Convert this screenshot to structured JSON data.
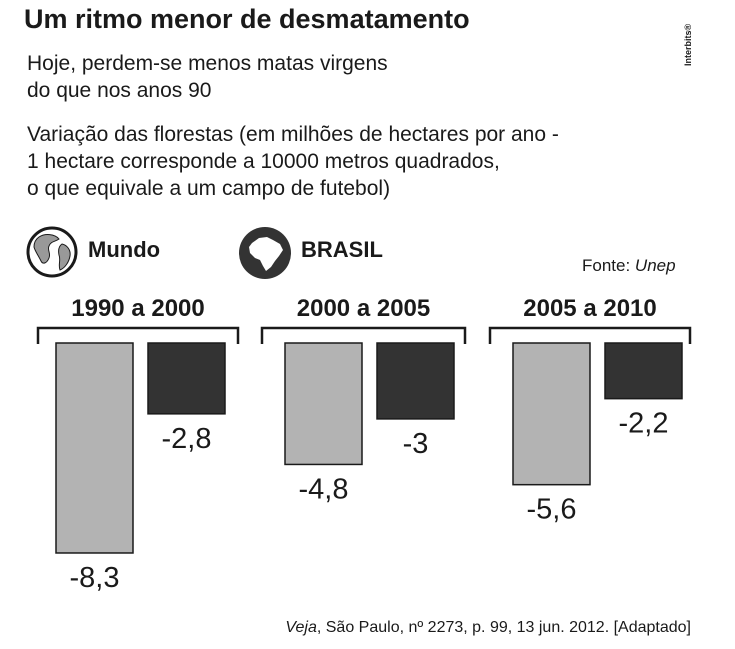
{
  "header": {
    "title": "Um ritmo menor de desmatamento",
    "subtitle_line1": "Hoje, perdem-se menos matas virgens",
    "subtitle_line2": "do que nos anos 90",
    "description_line1": "Variação das florestas (em milhões de hectares por ano -",
    "description_line2": "1 hectare corresponde a 10000 metros quadrados,",
    "description_line3": "o que equivale a um campo de futebol)",
    "credit": "Interbits®"
  },
  "legend": {
    "mundo": "Mundo",
    "brasil": "BRASIL",
    "mundo_icon": "globe-icon",
    "brasil_icon": "brazil-map-icon"
  },
  "source": {
    "prefix": "Fonte: ",
    "name": "Unep"
  },
  "footer": {
    "publication": "Veja",
    "rest": ", São Paulo, nº 2273, p. 99, 13 jun. 2012. [Adaptado]"
  },
  "colors": {
    "mundo": "#b3b3b3",
    "brasil": "#333333",
    "text": "#1a1a1a"
  },
  "chart_data": {
    "type": "bar",
    "title": "Um ritmo menor de desmatamento",
    "ylabel": "Variação das florestas (milhões de hectares por ano)",
    "categories": [
      "1990 a 2000",
      "2000 a 2005",
      "2005 a 2010"
    ],
    "series": [
      {
        "name": "Mundo",
        "values": [
          -8.3,
          -4.8,
          -5.6
        ],
        "labels": [
          "-8,3",
          "-4,8",
          "-5,6"
        ]
      },
      {
        "name": "BRASIL",
        "values": [
          -2.8,
          -3,
          -2.2
        ],
        "labels": [
          "-2,8",
          "-3",
          "-2,2"
        ]
      }
    ],
    "ylim": [
      -8.3,
      0
    ],
    "legend_position": "top-left"
  }
}
